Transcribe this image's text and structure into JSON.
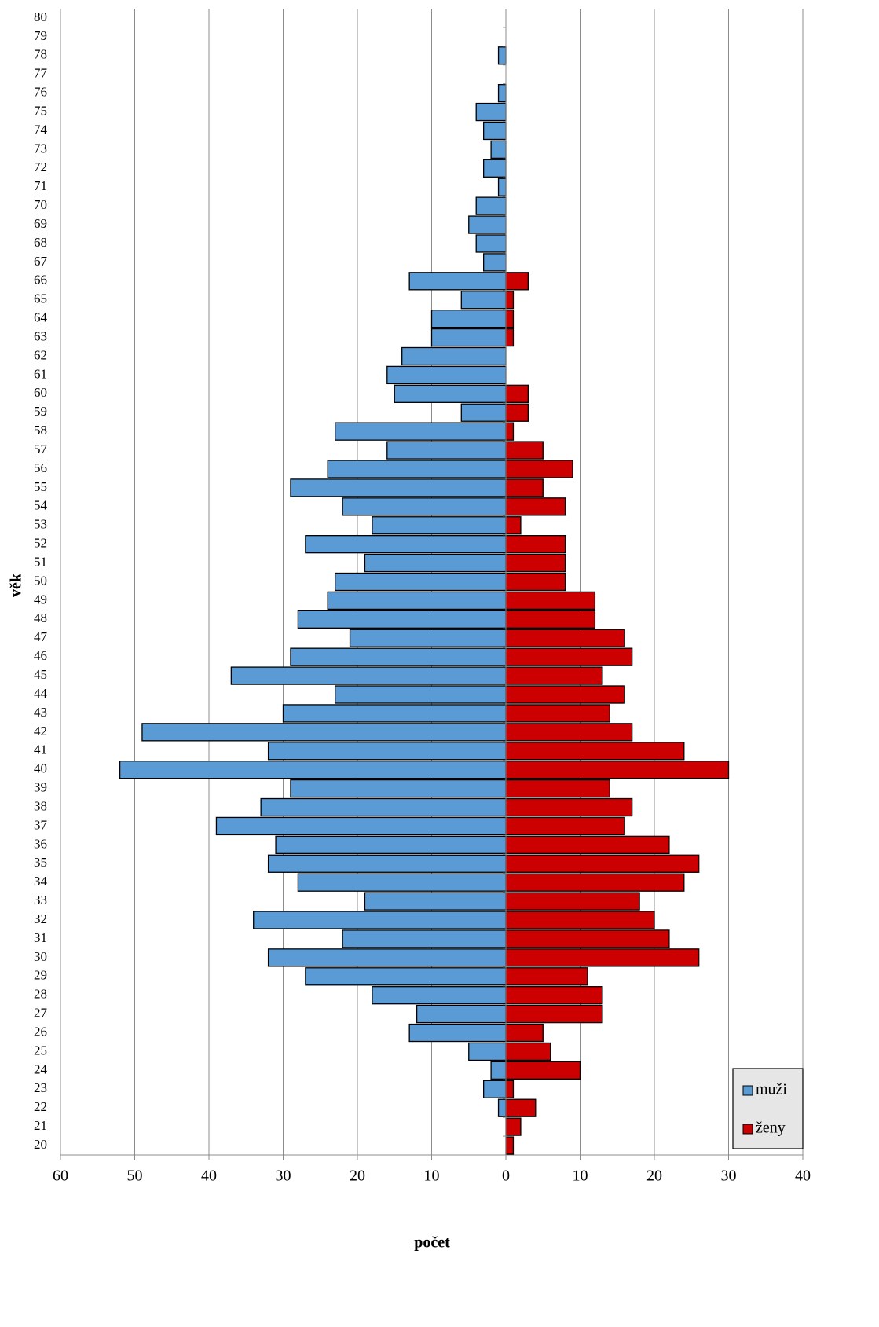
{
  "chart_data": {
    "type": "pyramid",
    "x_label": "počet",
    "y_label": "věk",
    "categories": [
      "20",
      "21",
      "22",
      "23",
      "24",
      "25",
      "26",
      "27",
      "28",
      "29",
      "30",
      "31",
      "32",
      "33",
      "34",
      "35",
      "36",
      "37",
      "38",
      "39",
      "40",
      "41",
      "42",
      "43",
      "44",
      "45",
      "46",
      "47",
      "48",
      "49",
      "50",
      "51",
      "52",
      "53",
      "54",
      "55",
      "56",
      "57",
      "58",
      "59",
      "60",
      "61",
      "62",
      "63",
      "64",
      "65",
      "66",
      "67",
      "68",
      "69",
      "70",
      "71",
      "72",
      "73",
      "74",
      "75",
      "76",
      "77",
      "78",
      "79",
      "80"
    ],
    "series": [
      {
        "name": "muži",
        "color": "#5b9bd5",
        "values": [
          0,
          0,
          -1,
          -3,
          -2,
          -5,
          -13,
          -12,
          -18,
          -27,
          -32,
          -22,
          -34,
          -19,
          -28,
          -32,
          -31,
          -39,
          -33,
          -29,
          -52,
          -32,
          -49,
          -30,
          -23,
          -37,
          -29,
          -21,
          -28,
          -24,
          -23,
          -19,
          -27,
          -18,
          -22,
          -29,
          -24,
          -16,
          -23,
          -6,
          -15,
          -16,
          -14,
          -10,
          -10,
          -6,
          -13,
          -3,
          -4,
          -5,
          -4,
          -1,
          -3,
          -2,
          -3,
          -4,
          -1,
          0,
          -1,
          0,
          0
        ]
      },
      {
        "name": "ženy",
        "color": "#cc0000",
        "values": [
          1,
          2,
          4,
          1,
          10,
          6,
          5,
          13,
          13,
          11,
          26,
          22,
          20,
          18,
          24,
          26,
          22,
          16,
          17,
          14,
          30,
          24,
          17,
          14,
          16,
          13,
          17,
          16,
          12,
          12,
          8,
          8,
          8,
          2,
          8,
          5,
          9,
          5,
          1,
          3,
          3,
          0,
          0,
          1,
          1,
          1,
          3,
          0,
          0,
          0,
          0,
          0,
          0,
          0,
          0,
          0,
          0,
          0,
          0,
          0,
          0
        ]
      }
    ],
    "xlim": [
      -60,
      40
    ],
    "xticks": [
      {
        "value": -60,
        "label": "60"
      },
      {
        "value": -50,
        "label": "50"
      },
      {
        "value": -40,
        "label": "40"
      },
      {
        "value": -30,
        "label": "30"
      },
      {
        "value": -20,
        "label": "20"
      },
      {
        "value": -10,
        "label": "10"
      },
      0,
      10,
      20,
      30,
      40
    ],
    "grid": true,
    "legend": "bottom-right"
  }
}
